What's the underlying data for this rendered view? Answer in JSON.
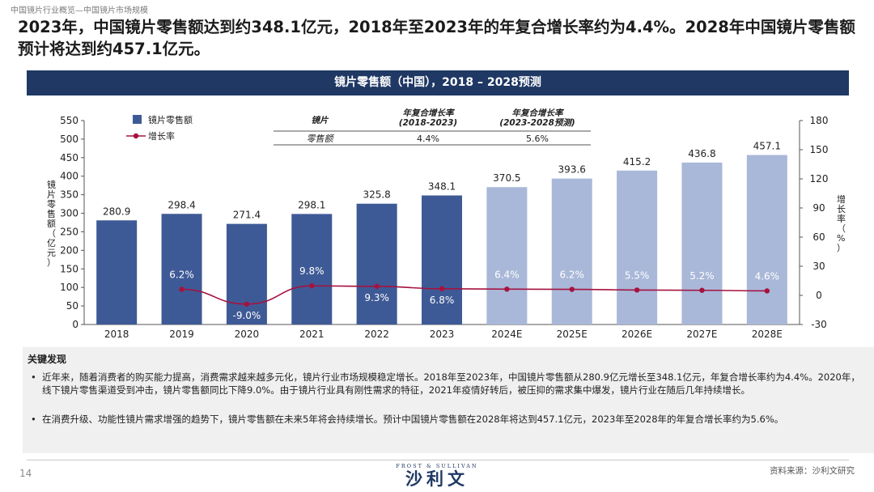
{
  "breadcrumb": "中国镜片行业概览—中国镜片市场规模",
  "headline": "2023年，中国镜片零售额达到约348.1亿元，2018年至2023年的年复合增长率约为4.4%。2028年中国镜片零售额预计将达到约457.1亿元。",
  "banner_title": "镜片零售额（中国），2018 – 2028预测",
  "colors": {
    "navy": "#1f3864",
    "bar_actual": "#3e5a96",
    "bar_forecast": "#a9b8d8",
    "line": "#a5123f"
  },
  "chart_data": {
    "type": "bar+line",
    "categories": [
      "2018",
      "2019",
      "2020",
      "2021",
      "2022",
      "2023",
      "2024E",
      "2025E",
      "2026E",
      "2027E",
      "2028E"
    ],
    "forecast_flags": [
      false,
      false,
      false,
      false,
      false,
      false,
      true,
      true,
      true,
      true,
      true
    ],
    "series": [
      {
        "name": "镜片零售额",
        "type": "bar",
        "axis": "left",
        "values": [
          280.9,
          298.4,
          271.4,
          298.1,
          325.8,
          348.1,
          370.5,
          393.6,
          415.2,
          436.8,
          457.1
        ],
        "labels": [
          "280.9",
          "298.4",
          "271.4",
          "298.1",
          "325.8",
          "348.1",
          "370.5",
          "393.6",
          "415.2",
          "436.8",
          "457.1"
        ]
      },
      {
        "name": "增长率",
        "type": "line",
        "axis": "right",
        "values": [
          null,
          6.2,
          -9.0,
          9.8,
          9.3,
          6.8,
          6.4,
          6.2,
          5.5,
          5.2,
          4.6
        ],
        "labels": [
          "",
          "6.2%",
          "-9.0%",
          "9.8%",
          "9.3%",
          "6.8%",
          "6.4%",
          "6.2%",
          "5.5%",
          "5.2%",
          "4.6%"
        ]
      }
    ],
    "left_axis": {
      "title": "镜片零售额（亿元）",
      "min": 0,
      "max": 550,
      "ticks": [
        "0",
        "50",
        "100",
        "150",
        "200",
        "250",
        "300",
        "350",
        "400",
        "450",
        "500",
        "550"
      ]
    },
    "right_axis": {
      "title": "增长率（%）",
      "min": -30,
      "max": 180,
      "ticks": [
        "-30",
        "0",
        "30",
        "60",
        "90",
        "120",
        "150",
        "180"
      ]
    },
    "legend": [
      "镜片零售额",
      "增长率"
    ],
    "cagr_table": {
      "header": [
        "镜片",
        "年复合增长率\n(2018-2023)",
        "年复合增长率\n(2023-2028预测)"
      ],
      "row": [
        "零售额",
        "4.4%",
        "5.6%"
      ]
    }
  },
  "findings": {
    "title": "关键发现",
    "bullet_symbol": "•",
    "bullets": [
      "近年来，随着消费者的购买能力提高，消费需求越来越多元化，镜片行业市场规模稳定增长。2018年至2023年，中国镜片零售额从280.9亿元增长至348.1亿元，年复合增长率约为4.4%。2020年，线下镜片零售渠道受到冲击，镜片零售额同比下降9.0%。由于镜片行业具有刚性需求的特征，2021年疫情好转后，被压抑的需求集中爆发，镜片行业在随后几年持续增长。",
      "在消费升级、功能性镜片需求增强的趋势下，镜片零售额在未来5年将会持续增长。预计中国镜片零售额在2028年将达到457.1亿元，2023年至2028年的年复合增长率约为5.6%。"
    ]
  },
  "footer": {
    "page_number": "14",
    "logo_top": "FROST & SULLIVAN",
    "logo_main": "沙利文",
    "source": "资料来源：沙利文研究"
  }
}
